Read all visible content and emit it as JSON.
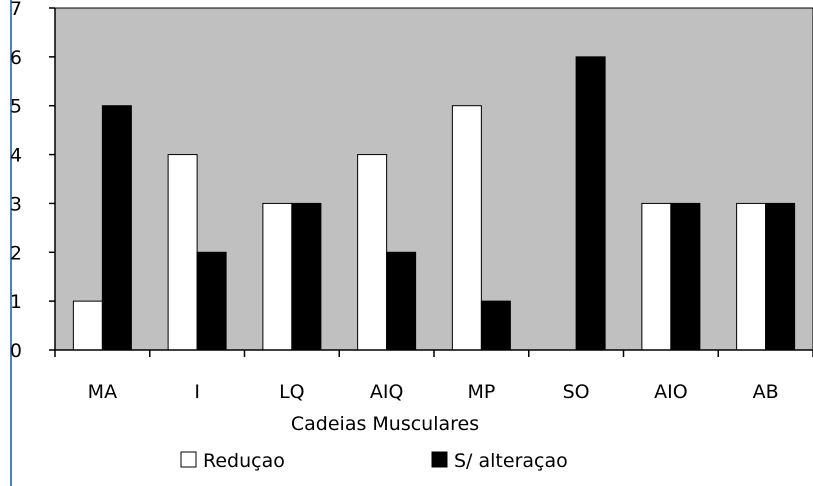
{
  "chart_data": {
    "type": "bar",
    "title": "",
    "xlabel": "Cadeias Musculares",
    "ylabel": "",
    "categories": [
      "MA",
      "I",
      "LQ",
      "AIQ",
      "MP",
      "SO",
      "AIO",
      "AB"
    ],
    "series": [
      {
        "name": "Reduçao",
        "values": [
          1,
          4,
          3,
          4,
          5,
          0,
          3,
          3
        ],
        "color": "#ffffff"
      },
      {
        "name": "S/ alteraçao",
        "values": [
          5,
          2,
          3,
          2,
          1,
          6,
          3,
          3
        ],
        "color": "#000000"
      }
    ],
    "ylim": [
      0,
      7
    ],
    "yticks": [
      0,
      1,
      2,
      3,
      4,
      5,
      6,
      7
    ],
    "grid": false,
    "plot_background": "#c0c0c0",
    "frame_color": "#4f81bd",
    "legend": "bottom"
  }
}
